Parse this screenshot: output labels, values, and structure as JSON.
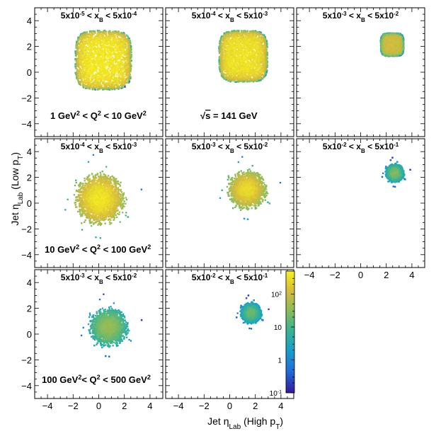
{
  "chart_data": {
    "type": "heatmap",
    "xlabel": "Jet η",
    "xlabel_sub": "Lab",
    "xlabel_tail": " (High p",
    "xlabel_tail_sub": "T",
    "xlabel_close": ")",
    "ylabel": "Jet η",
    "ylabel_sub": "Lab",
    "ylabel_tail": " (Low p",
    "ylabel_tail_sub": "T",
    "ylabel_close": ")",
    "xlim": [
      -5,
      5
    ],
    "ylim": [
      -5,
      5
    ],
    "ticks": [
      -4,
      -2,
      0,
      2,
      4
    ],
    "tick_labels": [
      "−4",
      "−2",
      "0",
      "2",
      "4"
    ],
    "colorbar": {
      "scale": "log",
      "range": [
        0.1,
        500
      ],
      "labels": [
        {
          "value": 100,
          "base": "10",
          "exp": "2"
        },
        {
          "value": 10,
          "base": "10",
          "exp": ""
        },
        {
          "value": 1,
          "base": "1",
          "exp": ""
        },
        {
          "value": 0.1,
          "base": "10",
          "exp": "-1"
        }
      ]
    },
    "annotations": {
      "q2_low": {
        "a": "1 GeV",
        "b": "2",
        "c": " < Q",
        "d": "2",
        "e": " < 10 GeV",
        "f": "2"
      },
      "q2_mid": {
        "a": "10 GeV",
        "b": "2",
        "c": " < Q",
        "d": "2",
        "e": " < 100 GeV",
        "f": "2"
      },
      "q2_high": {
        "a": "100 GeV",
        "b": "2",
        "c": "< Q",
        "d": "2",
        "e": " < 500 GeV",
        "f": "2"
      },
      "sqrt_s": {
        "radical": "√",
        "s": "s",
        "rest": " = 141 GeV"
      }
    },
    "panels": [
      {
        "title": {
          "lo": "5x10",
          "lo_exp": "-5",
          "mid": " < x",
          "mid_sub": "B",
          "op": " < 5x10",
          "hi_exp": "-4"
        },
        "blob": {
          "cx": 0.3,
          "cy": 1.0,
          "sx": 2.2,
          "sy": 2.3,
          "shape": "box",
          "peak": 400
        }
      },
      {
        "title": {
          "lo": "5x10",
          "lo_exp": "-4",
          "mid": " < x",
          "mid_sub": "B",
          "op": " < 5x10",
          "hi_exp": "-3"
        },
        "blob": {
          "cx": 1.0,
          "cy": 1.3,
          "sx": 1.9,
          "sy": 2.0,
          "shape": "box",
          "peak": 350
        }
      },
      {
        "title": {
          "lo": "5x10",
          "lo_exp": "-3",
          "mid": " < x",
          "mid_sub": "B",
          "op": " < 5x10",
          "hi_exp": "-2"
        },
        "blob": {
          "cx": 2.4,
          "cy": 2.2,
          "sx": 0.9,
          "sy": 0.9,
          "shape": "box",
          "peak": 120
        }
      },
      {
        "title": {
          "lo": "5x10",
          "lo_exp": "-4",
          "mid": " < x",
          "mid_sub": "B",
          "op": " < 5x10",
          "hi_exp": "-3"
        },
        "blob": {
          "cx": 0.0,
          "cy": 0.4,
          "sx": 1.9,
          "sy": 2.0,
          "shape": "round",
          "peak": 400
        }
      },
      {
        "title": {
          "lo": "5x10",
          "lo_exp": "-3",
          "mid": " < x",
          "mid_sub": "B",
          "op": " < 5x10",
          "hi_exp": "-2"
        },
        "blob": {
          "cx": 1.3,
          "cy": 1.1,
          "sx": 1.5,
          "sy": 1.5,
          "shape": "round",
          "peak": 300
        }
      },
      {
        "title": {
          "lo": "5x10",
          "lo_exp": "-2",
          "mid": " < x",
          "mid_sub": "B",
          "op": " < 5x10",
          "hi_exp": "-1"
        },
        "blob": {
          "cx": 2.6,
          "cy": 2.4,
          "sx": 0.7,
          "sy": 0.7,
          "shape": "round",
          "peak": 30
        }
      },
      {
        "title": {
          "lo": "5x10",
          "lo_exp": "-3",
          "mid": " < x",
          "mid_sub": "B",
          "op": " < 5x10",
          "hi_exp": "-2"
        },
        "blob": {
          "cx": 0.7,
          "cy": 0.6,
          "sx": 1.5,
          "sy": 1.5,
          "shape": "round",
          "peak": 40
        }
      },
      {
        "title": {
          "lo": "5x10",
          "lo_exp": "-2",
          "mid": " < x",
          "mid_sub": "B",
          "op": " < 5x10",
          "hi_exp": "-1"
        },
        "blob": {
          "cx": 1.6,
          "cy": 1.7,
          "sx": 0.8,
          "sy": 0.8,
          "shape": "round",
          "peak": 20
        }
      }
    ]
  }
}
